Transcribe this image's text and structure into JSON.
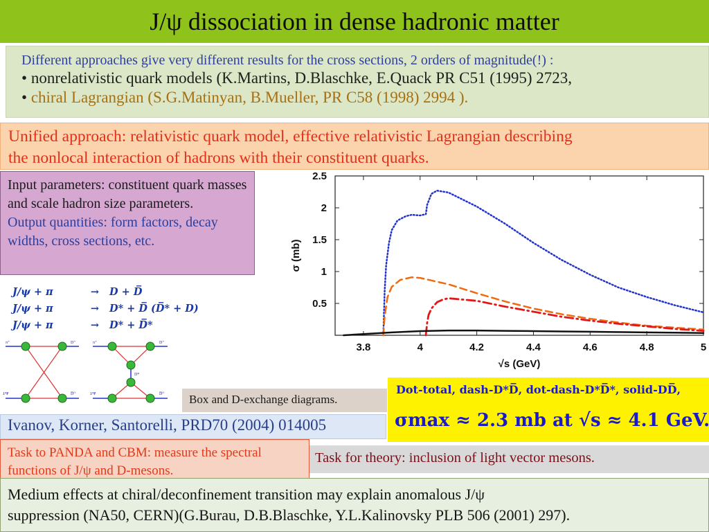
{
  "title": "J/ψ dissociation in dense hadronic matter",
  "intro": {
    "line1": "Different approaches give very different results for the cross sections, 2 orders of magnitude(!) :",
    "line2": "nonrelativistic quark models (K.Martins, D.Blaschke, E.Quack PR C51 (1995) 2723,",
    "line3": "chiral Lagrangian  (S.G.Matinyan, B.Mueller, PR C58 (1998) 2994 ).",
    "bullet": "•"
  },
  "unified": {
    "line1": "Unified approach: relativistic quark model,  effective relativistic Lagrangian describing",
    "line2": "the nonlocal interaction of hadrons with their constituent quarks."
  },
  "params": {
    "input": "Input parameters: constituent quark masses and scale hadron size parameters.",
    "output": "Output quantities: form factors, decay widths, cross sections, etc."
  },
  "reactions": [
    {
      "lhs": "J/ψ + π",
      "arrow": "→",
      "rhs": "D + D̅"
    },
    {
      "lhs": "J/ψ + π",
      "arrow": "→",
      "rhs": "D* + D̅  (D̅* + D)"
    },
    {
      "lhs": "J/ψ + π",
      "arrow": "→",
      "rhs": "D* + D̅*"
    }
  ],
  "diagram_labels": {
    "pi": "π⁺",
    "d_plus": "D⁺",
    "jpsi": "J/Ψ",
    "d_bar": "D̅⁰",
    "d_star": "D*"
  },
  "caption": "Box and D-exchange diagrams.",
  "legend": {
    "text": "Dot-total, dash-D*D̅,  dot-dash-D*D̅*,  solid-DD̅,",
    "sigma": "σmax ≈ 2.3 mb at √s ≈ 4.1 GeV."
  },
  "citation": "Ivanov, Korner, Santorelli, PRD70 (2004) 014005",
  "task_panda": "Task to PANDA and CBM: measure the spectral functions of J/ψ and D-mesons.",
  "task_theory": "Task for theory: inclusion of light vector mesons.",
  "bottom": {
    "line1": "Medium effects at chiral/deconfinement transition may explain anomalous J/ψ",
    "line2": "suppression (NA50, CERN)(G.Burau, D.B.Blaschke, Y.L.Kalinovsky PLB 506 (2001) 297)."
  },
  "colors": {
    "title_bar": "#8fc21a",
    "total": "#2233cc",
    "dstar_dbar": "#ef6a10",
    "dstar_dstar": "#e01818",
    "d_dbar": "#111111"
  },
  "chart_data": {
    "type": "line",
    "xlabel": "√s  (GeV)",
    "ylabel": "σ (mb)",
    "xlim": [
      3.7,
      5.0
    ],
    "ylim": [
      0,
      2.5
    ],
    "x_ticks": [
      "3.8",
      "4",
      "4.2",
      "4.4",
      "4.6",
      "4.8",
      "5"
    ],
    "y_ticks": [
      "0.5",
      "1",
      "1.5",
      "2",
      "2.5"
    ],
    "grid": false,
    "series": [
      {
        "key": "total",
        "style": "dotted",
        "color": "#2233cc",
        "points": [
          [
            3.87,
            0.0
          ],
          [
            3.875,
            0.7
          ],
          [
            3.88,
            1.1
          ],
          [
            3.89,
            1.45
          ],
          [
            3.9,
            1.65
          ],
          [
            3.92,
            1.8
          ],
          [
            3.95,
            1.87
          ],
          [
            3.97,
            1.89
          ],
          [
            4.0,
            1.88
          ],
          [
            4.02,
            1.9
          ],
          [
            4.025,
            2.05
          ],
          [
            4.04,
            2.22
          ],
          [
            4.06,
            2.27
          ],
          [
            4.1,
            2.24
          ],
          [
            4.2,
            2.02
          ],
          [
            4.3,
            1.75
          ],
          [
            4.4,
            1.45
          ],
          [
            4.5,
            1.18
          ],
          [
            4.6,
            0.95
          ],
          [
            4.7,
            0.75
          ],
          [
            4.8,
            0.6
          ],
          [
            4.9,
            0.47
          ],
          [
            5.0,
            0.36
          ]
        ]
      },
      {
        "key": "dstar_dbar",
        "style": "dashed",
        "color": "#ef6a10",
        "points": [
          [
            3.87,
            0.0
          ],
          [
            3.875,
            0.3
          ],
          [
            3.885,
            0.6
          ],
          [
            3.9,
            0.76
          ],
          [
            3.93,
            0.87
          ],
          [
            3.97,
            0.91
          ],
          [
            4.0,
            0.9
          ],
          [
            4.1,
            0.8
          ],
          [
            4.2,
            0.66
          ],
          [
            4.3,
            0.53
          ],
          [
            4.4,
            0.42
          ],
          [
            4.5,
            0.33
          ],
          [
            4.6,
            0.26
          ],
          [
            4.7,
            0.2
          ],
          [
            4.8,
            0.15
          ],
          [
            4.9,
            0.12
          ],
          [
            5.0,
            0.09
          ]
        ]
      },
      {
        "key": "dstar_dstar",
        "style": "dashdot",
        "color": "#e01818",
        "points": [
          [
            4.02,
            0.0
          ],
          [
            4.025,
            0.2
          ],
          [
            4.03,
            0.32
          ],
          [
            4.04,
            0.42
          ],
          [
            4.06,
            0.52
          ],
          [
            4.08,
            0.56
          ],
          [
            4.1,
            0.58
          ],
          [
            4.2,
            0.54
          ],
          [
            4.3,
            0.45
          ],
          [
            4.4,
            0.37
          ],
          [
            4.5,
            0.29
          ],
          [
            4.6,
            0.23
          ],
          [
            4.7,
            0.18
          ],
          [
            4.8,
            0.14
          ],
          [
            4.9,
            0.1
          ],
          [
            5.0,
            0.07
          ]
        ]
      },
      {
        "key": "d_dbar",
        "style": "solid",
        "color": "#111111",
        "points": [
          [
            3.73,
            0.0
          ],
          [
            3.8,
            0.02
          ],
          [
            3.9,
            0.045
          ],
          [
            4.0,
            0.065
          ],
          [
            4.1,
            0.075
          ],
          [
            4.2,
            0.075
          ],
          [
            4.3,
            0.07
          ],
          [
            4.4,
            0.065
          ],
          [
            4.5,
            0.06
          ],
          [
            4.6,
            0.055
          ],
          [
            4.7,
            0.05
          ],
          [
            4.8,
            0.045
          ],
          [
            4.9,
            0.04
          ],
          [
            5.0,
            0.035
          ]
        ]
      }
    ]
  }
}
